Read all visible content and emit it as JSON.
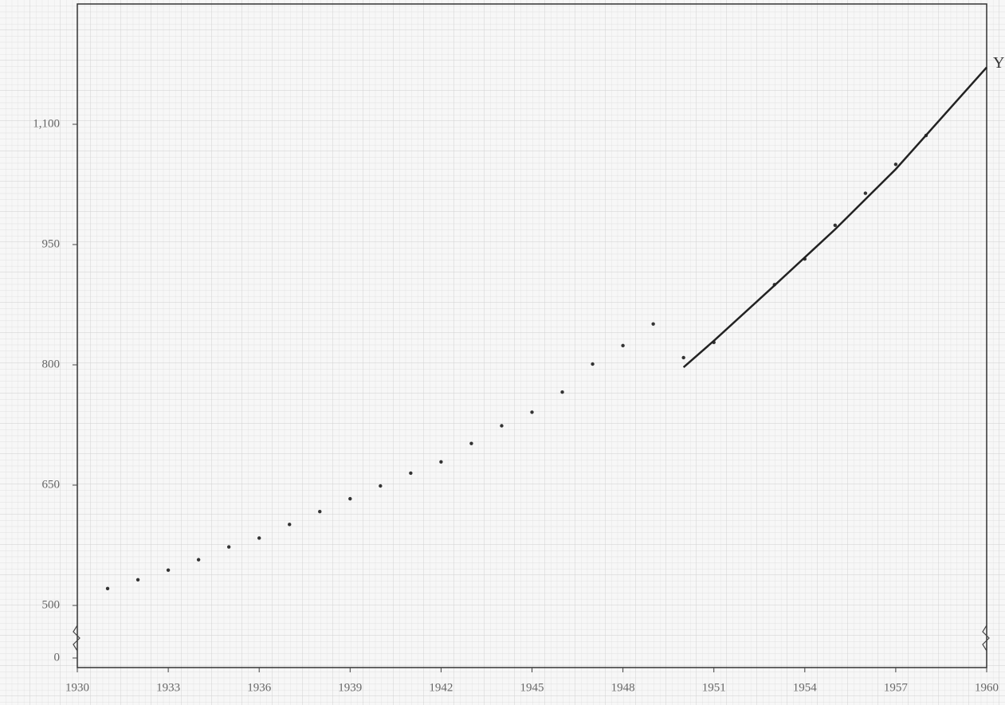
{
  "chart_data": {
    "type": "scatter",
    "annotation": "Y",
    "xlim": [
      1930,
      1960
    ],
    "xticks": [
      1930,
      1933,
      1936,
      1939,
      1942,
      1945,
      1948,
      1951,
      1954,
      1957,
      1960
    ],
    "ylim": [
      0,
      1250
    ],
    "yticks": [
      0,
      500,
      650,
      800,
      950,
      {
        "value": 1100,
        "label": "1,100"
      }
    ],
    "axis_break": true,
    "series": [
      {
        "marker": "dot",
        "color": "#333333",
        "x": [
          1931,
          1932,
          1933,
          1934,
          1935,
          1936,
          1937,
          1938,
          1939,
          1940,
          1941,
          1942,
          1943,
          1944,
          1945,
          1946,
          1947,
          1948,
          1949,
          1950,
          1951,
          1953,
          1954,
          1955,
          1956,
          1957,
          1958
        ],
        "values": [
          521,
          532,
          544,
          557,
          573,
          584,
          601,
          617,
          633,
          649,
          665,
          679,
          702,
          724,
          741,
          766,
          801,
          824,
          851,
          809,
          828,
          900,
          932,
          974,
          1014,
          1050,
          1086
        ]
      },
      {
        "marker": "line",
        "color": "#222222",
        "x": [
          1950,
          1951,
          1953,
          1955,
          1957,
          1960
        ],
        "values": [
          797,
          830,
          899,
          969,
          1044,
          1171
        ]
      }
    ]
  }
}
